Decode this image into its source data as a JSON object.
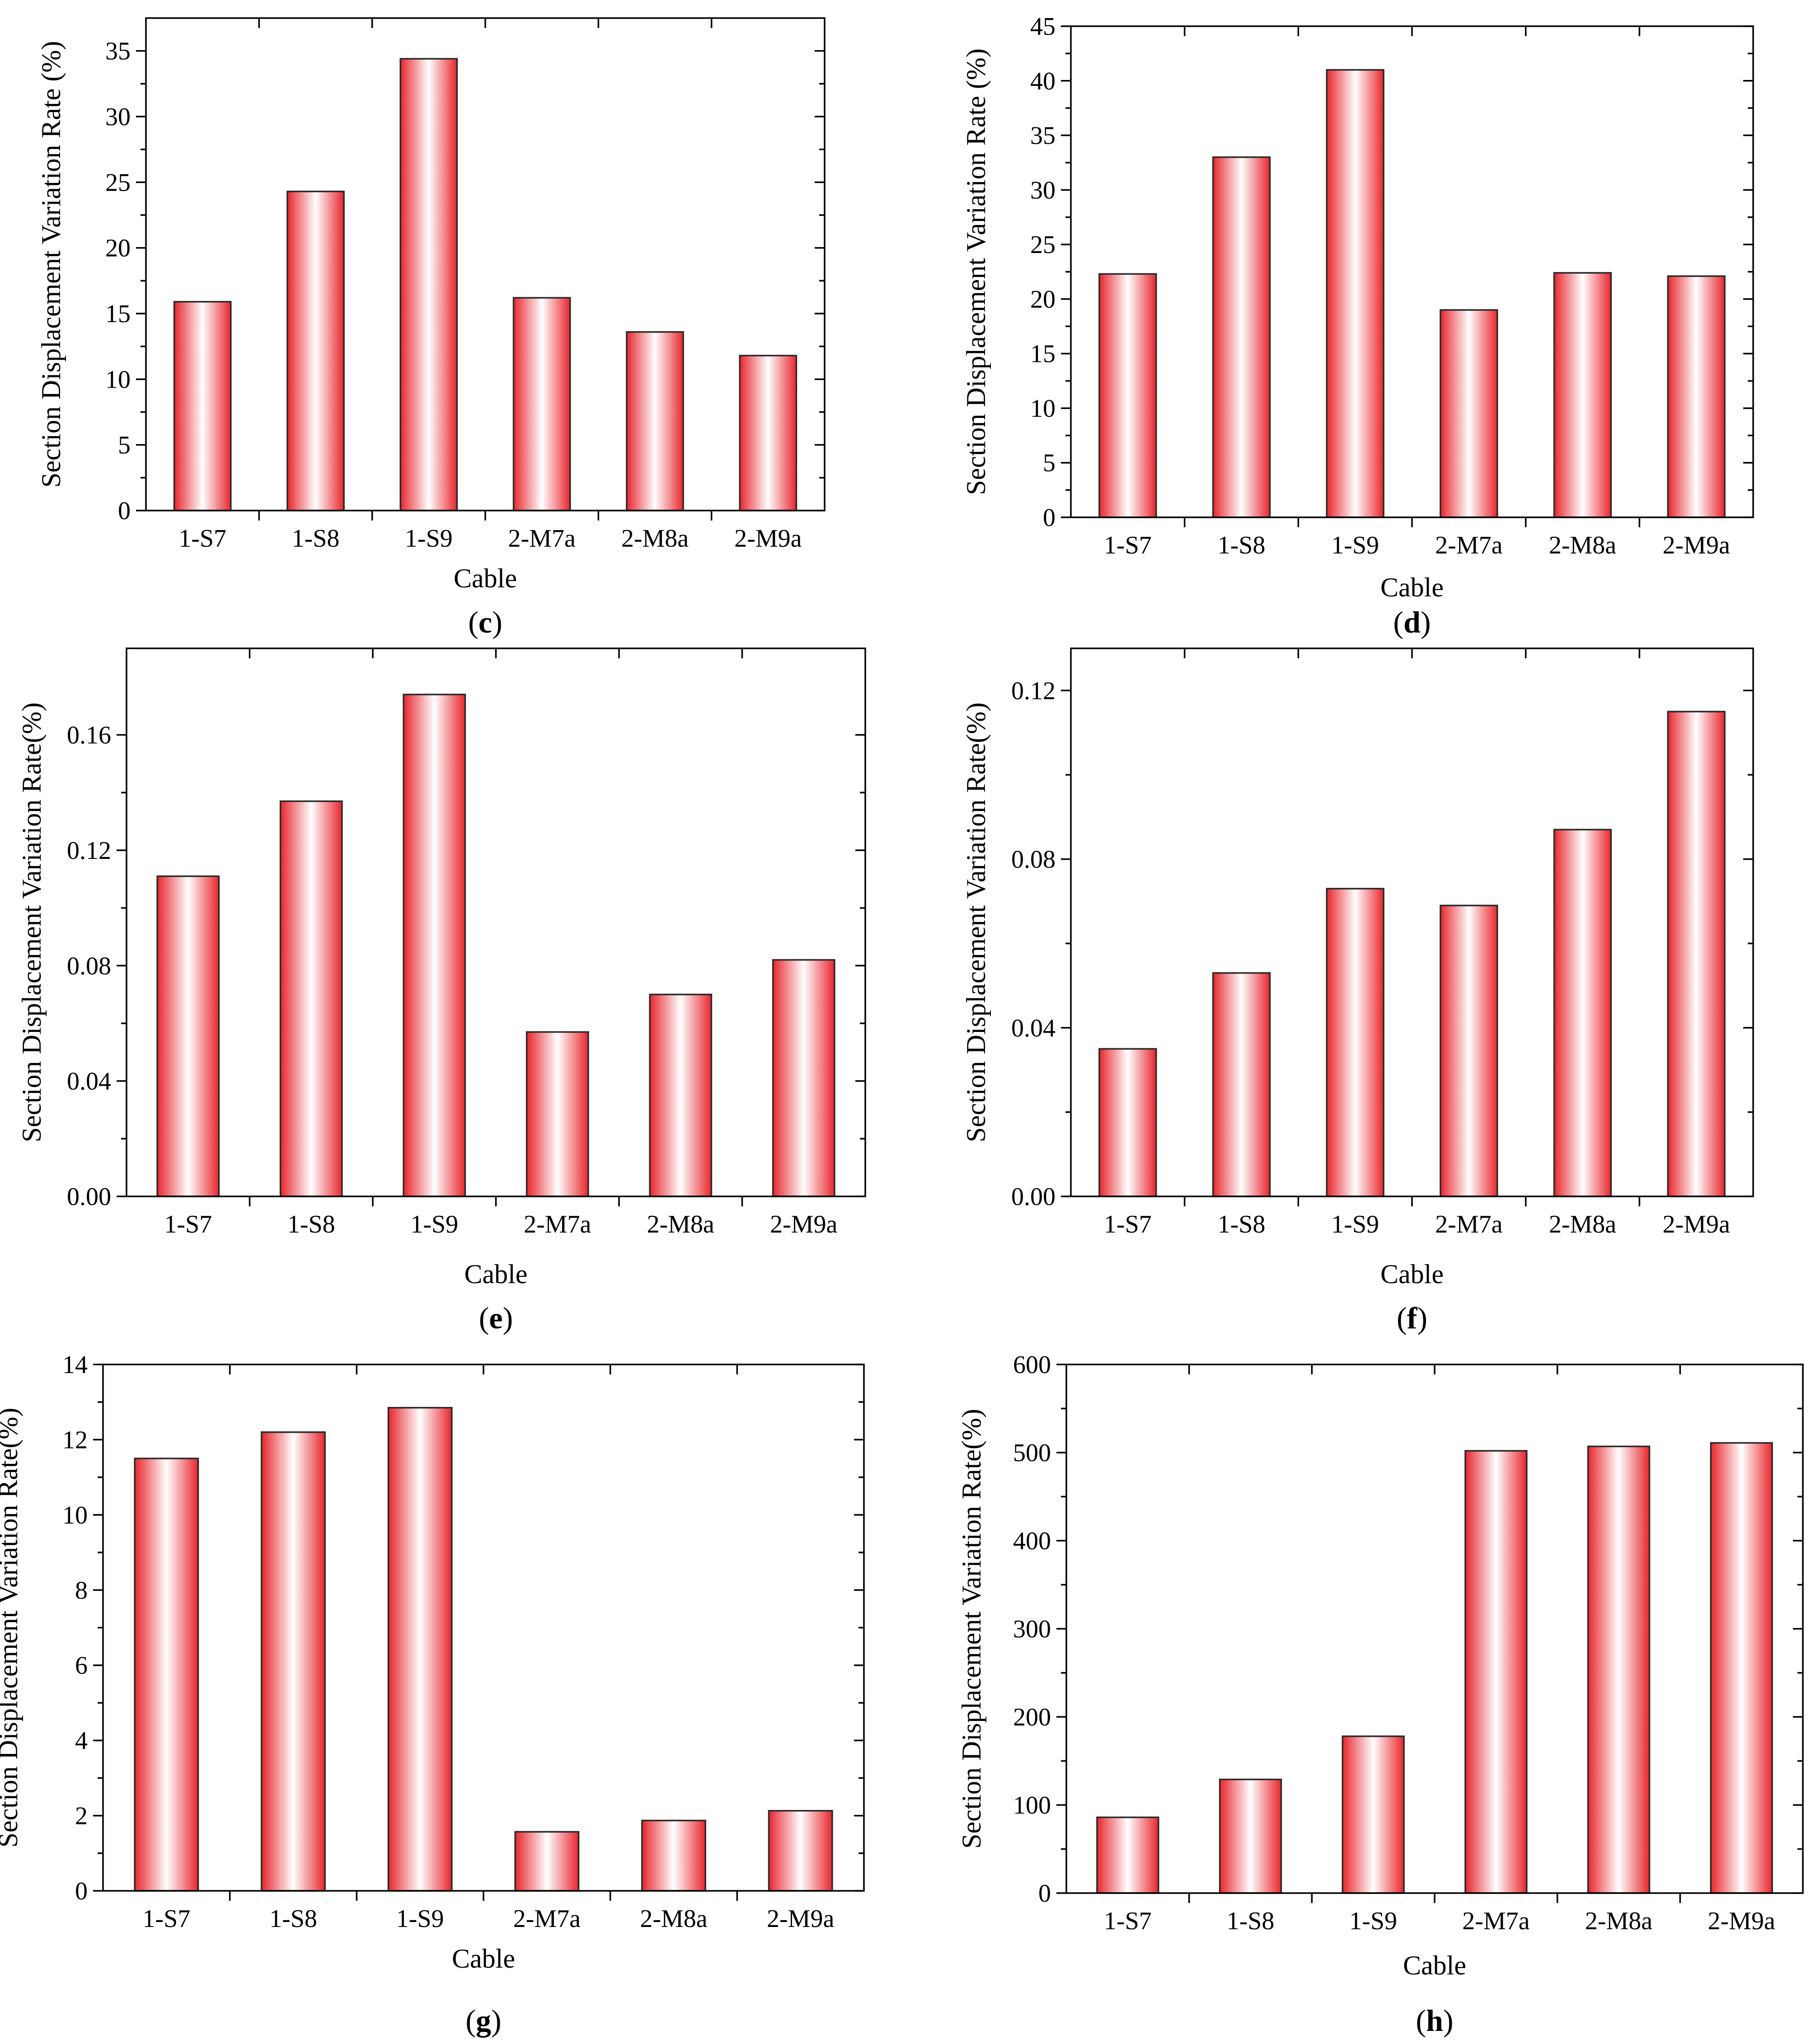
{
  "colors": {
    "bar_edge": "#e8262d",
    "bar_center": "#ffffff",
    "axis": "#000000"
  },
  "chart_data": [
    {
      "panel": "c",
      "type": "bar",
      "title": "",
      "xlabel": "Cable",
      "ylabel": "Section Displacement Variation Rate (%)",
      "categories": [
        "1-S7",
        "1-S8",
        "1-S9",
        "2-M7a",
        "2-M8a",
        "2-M9a"
      ],
      "values": [
        15.9,
        24.3,
        34.4,
        16.2,
        13.6,
        11.8
      ],
      "ylim": [
        0,
        37.5
      ],
      "yticks": [
        0,
        5,
        10,
        15,
        20,
        25,
        30,
        35
      ],
      "ytick_labels": [
        "0",
        "5",
        "10",
        "15",
        "20",
        "25",
        "30",
        "35"
      ]
    },
    {
      "panel": "d",
      "type": "bar",
      "title": "",
      "xlabel": "Cable",
      "ylabel": "Section Displacement Variation Rate (%)",
      "categories": [
        "1-S7",
        "1-S8",
        "1-S9",
        "2-M7a",
        "2-M8a",
        "2-M9a"
      ],
      "values": [
        22.3,
        33.0,
        41.0,
        19.0,
        22.4,
        22.1
      ],
      "ylim": [
        0,
        45
      ],
      "yticks": [
        0,
        5,
        10,
        15,
        20,
        25,
        30,
        35,
        40,
        45
      ],
      "ytick_labels": [
        "0",
        "5",
        "10",
        "15",
        "20",
        "25",
        "30",
        "35",
        "40",
        "45"
      ]
    },
    {
      "panel": "e",
      "type": "bar",
      "title": "",
      "xlabel": "Cable",
      "ylabel": "Section Displacement Variation Rate(%)",
      "categories": [
        "1-S7",
        "1-S8",
        "1-S9",
        "2-M7a",
        "2-M8a",
        "2-M9a"
      ],
      "values": [
        0.111,
        0.137,
        0.174,
        0.057,
        0.07,
        0.082
      ],
      "ylim": [
        0,
        0.19
      ],
      "yticks": [
        0,
        0.04,
        0.08,
        0.12,
        0.16
      ],
      "ytick_labels": [
        "0.00",
        "0.04",
        "0.08",
        "0.12",
        "0.16"
      ]
    },
    {
      "panel": "f",
      "type": "bar",
      "title": "",
      "xlabel": "Cable",
      "ylabel": "Section Displacement Variation Rate(%)",
      "categories": [
        "1-S7",
        "1-S8",
        "1-S9",
        "2-M7a",
        "2-M8a",
        "2-M9a"
      ],
      "values": [
        0.035,
        0.053,
        0.073,
        0.069,
        0.087,
        0.115
      ],
      "ylim": [
        0,
        0.13
      ],
      "yticks": [
        0,
        0.04,
        0.08,
        0.12
      ],
      "ytick_labels": [
        "0.00",
        "0.04",
        "0.08",
        "0.12"
      ]
    },
    {
      "panel": "g",
      "type": "bar",
      "title": "",
      "xlabel": "Cable",
      "ylabel": "Section Displacement Variation Rate(%)",
      "categories": [
        "1-S7",
        "1-S8",
        "1-S9",
        "2-M7a",
        "2-M8a",
        "2-M9a"
      ],
      "values": [
        11.5,
        12.2,
        12.85,
        1.57,
        1.87,
        2.13
      ],
      "ylim": [
        0,
        14
      ],
      "yticks": [
        0,
        2,
        4,
        6,
        8,
        10,
        12,
        14
      ],
      "ytick_labels": [
        "0",
        "2",
        "4",
        "6",
        "8",
        "10",
        "12",
        "14"
      ]
    },
    {
      "panel": "h",
      "type": "bar",
      "title": "",
      "xlabel": "Cable",
      "ylabel": "Section Displacement Variation Rate(%)",
      "categories": [
        "1-S7",
        "1-S8",
        "1-S9",
        "2-M7a",
        "2-M8a",
        "2-M9a"
      ],
      "values": [
        86,
        129,
        178,
        502,
        507,
        511
      ],
      "ylim": [
        0,
        600
      ],
      "yticks": [
        0,
        100,
        200,
        300,
        400,
        500,
        600
      ],
      "ytick_labels": [
        "0",
        "100",
        "200",
        "300",
        "400",
        "500",
        "600"
      ]
    }
  ]
}
